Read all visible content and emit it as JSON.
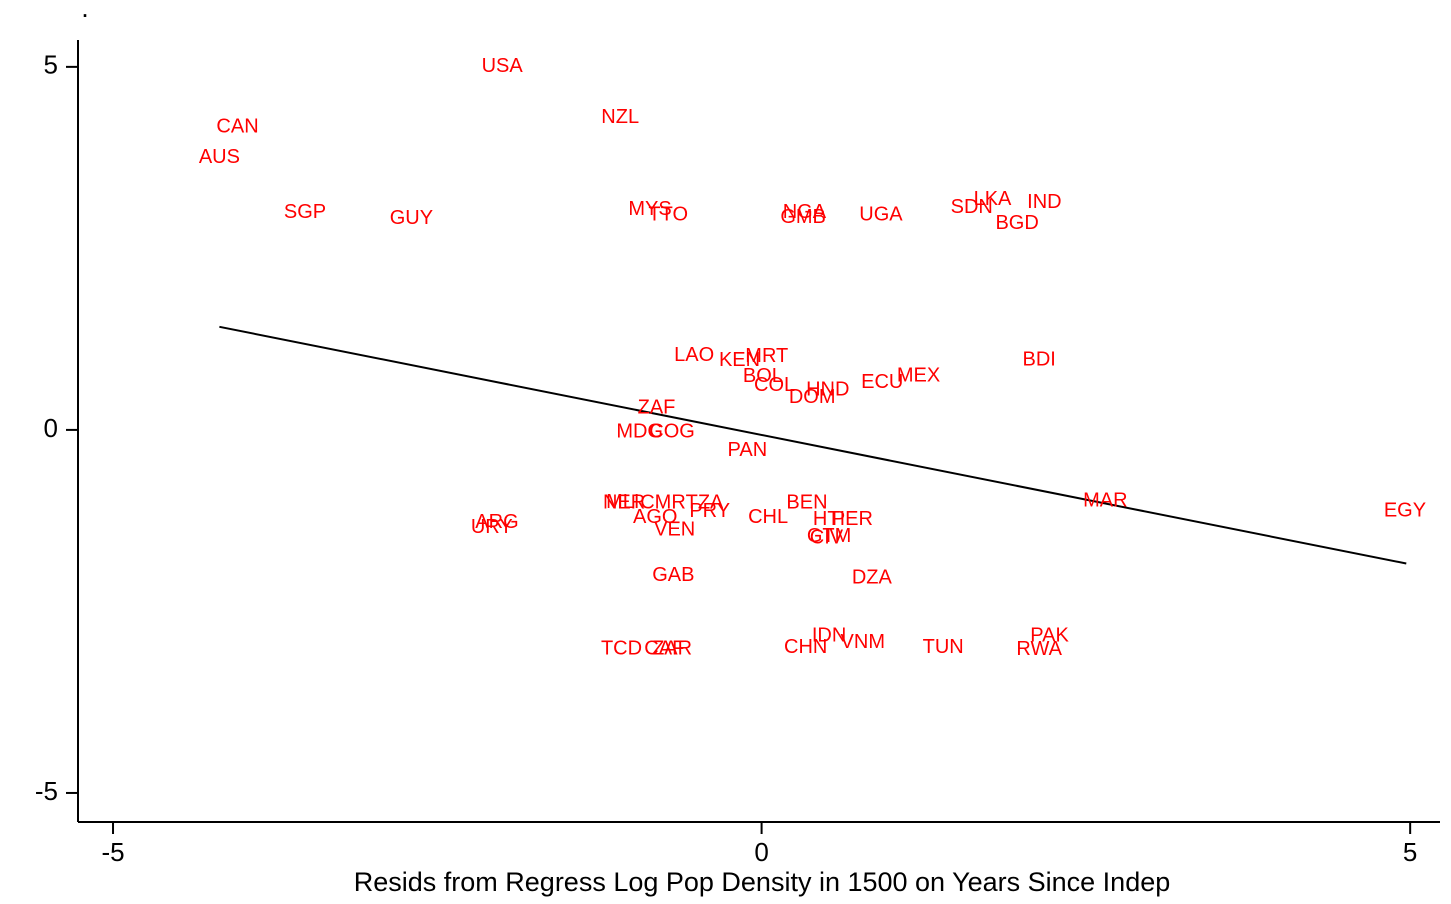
{
  "chart_data": {
    "type": "scatter",
    "ytitle": ".",
    "xlabel": "Resids from Regress Log Pop Density in 1500 on Years Since Indep",
    "xlim": [
      -5.27,
      5.23
    ],
    "ylim": [
      -5.4,
      5.37
    ],
    "xticks": [
      -5,
      0,
      5
    ],
    "yticks": [
      -5,
      0,
      5
    ],
    "color": "#ff0000",
    "labels": [
      "USA",
      "CAN",
      "AUS",
      "SGP",
      "GUY",
      "NZL",
      "MYS",
      "TTO",
      "NGA",
      "GMB",
      "UGA",
      "SDN",
      "LKA",
      "IND",
      "BGD",
      "LAO",
      "KEN",
      "MRT",
      "BOL",
      "COL",
      "HND",
      "DOM",
      "ECU",
      "MEX",
      "BDI",
      "ZAF",
      "MDG",
      "COG",
      "PAN",
      "MAR",
      "EGY",
      "NER",
      "MLI",
      "CMR",
      "TZA",
      "AGO",
      "PRY",
      "CHL",
      "VEN",
      "BEN",
      "HTI",
      "PER",
      "CIV",
      "GTM",
      "URY",
      "ARG",
      "GAB",
      "DZA",
      "IDN",
      "VNM",
      "CHN",
      "TUN",
      "PAK",
      "RWA",
      "TCD",
      "ZAR",
      "CAF"
    ],
    "x": [
      -2.0,
      -4.04,
      -4.18,
      -3.52,
      -2.7,
      -1.09,
      -0.86,
      -0.72,
      0.33,
      0.32,
      0.92,
      1.62,
      1.78,
      2.18,
      1.97,
      -0.52,
      -0.17,
      0.04,
      0.01,
      0.1,
      0.51,
      0.39,
      0.93,
      1.21,
      2.14,
      -0.81,
      -0.94,
      -0.69,
      -0.11,
      2.65,
      4.96,
      -1.06,
      -1.07,
      -0.76,
      -0.44,
      -0.82,
      -0.4,
      0.05,
      -0.67,
      0.35,
      0.52,
      0.7,
      0.5,
      0.52,
      -2.08,
      -2.04,
      -0.68,
      0.85,
      0.52,
      0.78,
      0.34,
      1.4,
      2.22,
      2.14,
      -1.08,
      -0.69,
      -0.75
    ],
    "y": [
      5.0,
      4.17,
      3.75,
      2.99,
      2.91,
      4.3,
      3.03,
      2.96,
      2.99,
      2.92,
      2.96,
      3.06,
      3.17,
      3.13,
      2.84,
      1.02,
      0.95,
      1.01,
      0.73,
      0.61,
      0.55,
      0.44,
      0.65,
      0.74,
      0.96,
      0.3,
      -0.03,
      -0.03,
      -0.29,
      -0.98,
      -1.12,
      -1.01,
      -1.0,
      -1.01,
      -1.01,
      -1.21,
      -1.13,
      -1.21,
      -1.38,
      -1.01,
      -1.24,
      -1.24,
      -1.49,
      -1.47,
      -1.35,
      -1.28,
      -2.01,
      -2.04,
      -2.84,
      -2.93,
      -3.0,
      -3.0,
      -2.84,
      -3.03,
      -3.02,
      -3.02,
      -3.02
    ],
    "fit_line": {
      "x": [
        -4.18,
        4.97
      ],
      "y": [
        1.42,
        -1.84
      ],
      "color": "#000000"
    }
  }
}
